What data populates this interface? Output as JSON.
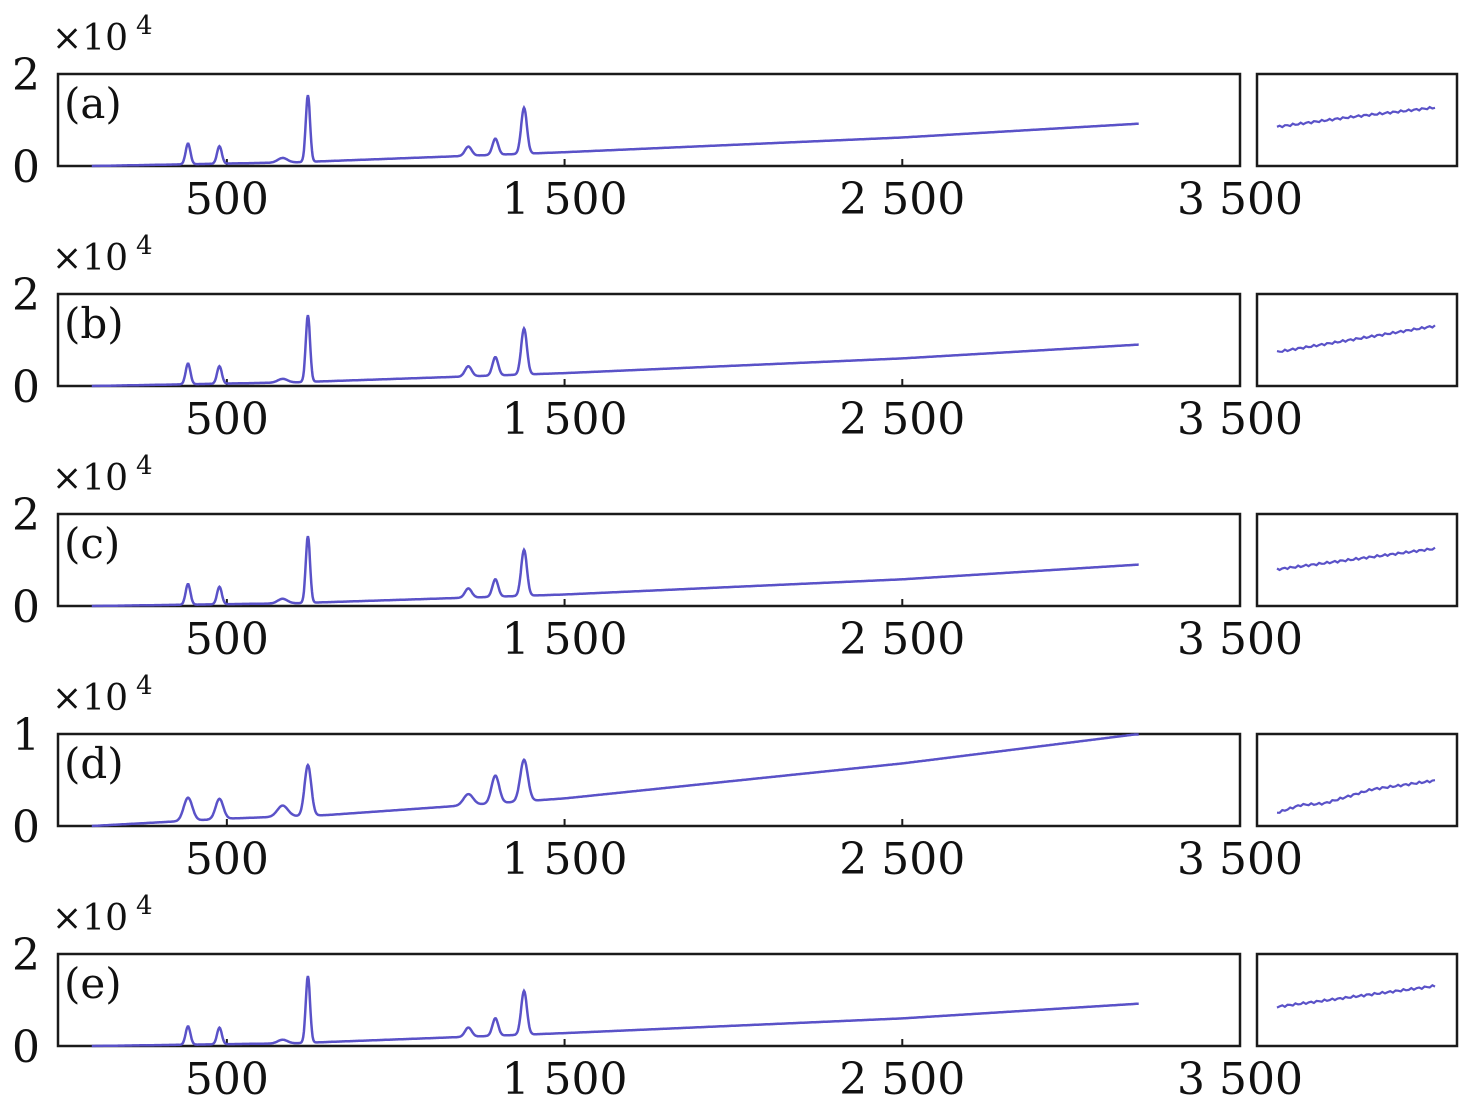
{
  "chart_data": [
    {
      "type": "line",
      "panel_label": "(a)",
      "y_multiplier": "×10",
      "y_multiplier_exp": "4",
      "y_ticks": [
        "0",
        "2"
      ],
      "ylim": [
        0,
        2
      ],
      "x_ticks": [
        "500",
        "1 500",
        "2 500",
        "3 500"
      ],
      "x_tick_values": [
        500,
        1500,
        2500,
        3500
      ],
      "xlim": [
        0,
        3500
      ],
      "series": [
        {
          "color": "#5a52c8",
          "baseline": [
            [
              100,
              0.0
            ],
            [
              700,
              0.08
            ],
            [
              1500,
              0.3
            ],
            [
              2500,
              0.62
            ],
            [
              3200,
              0.92
            ]
          ],
          "peaks": [
            [
              385,
              0.45,
              10
            ],
            [
              478,
              0.38,
              10
            ],
            [
              665,
              0.1,
              20
            ],
            [
              740,
              1.45,
              9
            ],
            [
              1215,
              0.2,
              14
            ],
            [
              1295,
              0.35,
              12
            ],
            [
              1380,
              1.0,
              12
            ]
          ],
          "inset": [
            [
              0,
              0.6
            ],
            [
              0.5,
              0.8
            ],
            [
              1,
              0.97
            ]
          ]
        }
      ]
    },
    {
      "type": "line",
      "panel_label": "(b)",
      "y_multiplier": "×10",
      "y_multiplier_exp": "4",
      "y_ticks": [
        "0",
        "2"
      ],
      "ylim": [
        0,
        2
      ],
      "x_ticks": [
        "500",
        "1 500",
        "2 500",
        "3 500"
      ],
      "x_tick_values": [
        500,
        1500,
        2500,
        3500
      ],
      "xlim": [
        0,
        3500
      ],
      "series": [
        {
          "color": "#5a52c8",
          "baseline": [
            [
              100,
              0.0
            ],
            [
              700,
              0.08
            ],
            [
              1500,
              0.28
            ],
            [
              2500,
              0.6
            ],
            [
              3200,
              0.9
            ]
          ],
          "peaks": [
            [
              385,
              0.45,
              10
            ],
            [
              478,
              0.38,
              10
            ],
            [
              665,
              0.08,
              20
            ],
            [
              740,
              1.45,
              9
            ],
            [
              1215,
              0.22,
              14
            ],
            [
              1295,
              0.4,
              12
            ],
            [
              1380,
              1.0,
              12
            ]
          ],
          "inset": [
            [
              0,
              0.5
            ],
            [
              0.5,
              0.75
            ],
            [
              1,
              1.0
            ]
          ]
        }
      ]
    },
    {
      "type": "line",
      "panel_label": "(c)",
      "y_multiplier": "×10",
      "y_multiplier_exp": "4",
      "y_ticks": [
        "0",
        "2"
      ],
      "ylim": [
        0,
        2
      ],
      "x_ticks": [
        "500",
        "1 500",
        "2 500",
        "3 500"
      ],
      "x_tick_values": [
        500,
        1500,
        2500,
        3500
      ],
      "xlim": [
        0,
        3500
      ],
      "series": [
        {
          "color": "#5a52c8",
          "baseline": [
            [
              100,
              0.0
            ],
            [
              700,
              0.06
            ],
            [
              1500,
              0.25
            ],
            [
              2500,
              0.58
            ],
            [
              3200,
              0.9
            ]
          ],
          "peaks": [
            [
              385,
              0.45,
              10
            ],
            [
              478,
              0.38,
              10
            ],
            [
              665,
              0.1,
              20
            ],
            [
              740,
              1.45,
              9
            ],
            [
              1215,
              0.2,
              14
            ],
            [
              1295,
              0.38,
              12
            ],
            [
              1380,
              1.0,
              12
            ]
          ],
          "inset": [
            [
              0,
              0.55
            ],
            [
              0.5,
              0.75
            ],
            [
              1,
              0.95
            ]
          ]
        }
      ]
    },
    {
      "type": "line",
      "panel_label": "(d)",
      "y_multiplier": "×10",
      "y_multiplier_exp": "4",
      "y_ticks": [
        "0",
        "1"
      ],
      "ylim": [
        0,
        1
      ],
      "x_ticks": [
        "500",
        "1 500",
        "2 500",
        "3 500"
      ],
      "x_tick_values": [
        500,
        1500,
        2500,
        3500
      ],
      "xlim": [
        0,
        3500
      ],
      "series": [
        {
          "color": "#5a52c8",
          "baseline": [
            [
              100,
              0.0
            ],
            [
              500,
              0.08
            ],
            [
              800,
              0.12
            ],
            [
              1500,
              0.3
            ],
            [
              2500,
              0.68
            ],
            [
              3200,
              1.0
            ]
          ],
          "peaks": [
            [
              385,
              0.25,
              18
            ],
            [
              478,
              0.22,
              16
            ],
            [
              665,
              0.12,
              22
            ],
            [
              740,
              0.55,
              14
            ],
            [
              1215,
              0.12,
              20
            ],
            [
              1295,
              0.3,
              16
            ],
            [
              1380,
              0.45,
              16
            ]
          ],
          "inset": [
            [
              0,
              0.1
            ],
            [
              0.15,
              0.25
            ],
            [
              0.3,
              0.28
            ],
            [
              0.6,
              0.55
            ],
            [
              1,
              0.72
            ]
          ]
        }
      ]
    },
    {
      "type": "line",
      "panel_label": "(e)",
      "y_multiplier": "×10",
      "y_multiplier_exp": "4",
      "y_ticks": [
        "0",
        "2"
      ],
      "ylim": [
        0,
        2
      ],
      "x_ticks": [
        "500",
        "1 500",
        "2 500",
        "3 500"
      ],
      "x_tick_values": [
        500,
        1500,
        2500,
        3500
      ],
      "xlim": [
        0,
        3500
      ],
      "series": [
        {
          "color": "#5a52c8",
          "baseline": [
            [
              100,
              0.0
            ],
            [
              700,
              0.06
            ],
            [
              1500,
              0.28
            ],
            [
              2500,
              0.6
            ],
            [
              3200,
              0.92
            ]
          ],
          "peaks": [
            [
              385,
              0.4,
              10
            ],
            [
              478,
              0.36,
              10
            ],
            [
              665,
              0.08,
              20
            ],
            [
              740,
              1.45,
              9
            ],
            [
              1215,
              0.2,
              14
            ],
            [
              1295,
              0.38,
              12
            ],
            [
              1380,
              0.95,
              12
            ]
          ],
          "inset": [
            [
              0,
              0.6
            ],
            [
              0.5,
              0.8
            ],
            [
              1,
              1.0
            ]
          ]
        }
      ]
    }
  ]
}
